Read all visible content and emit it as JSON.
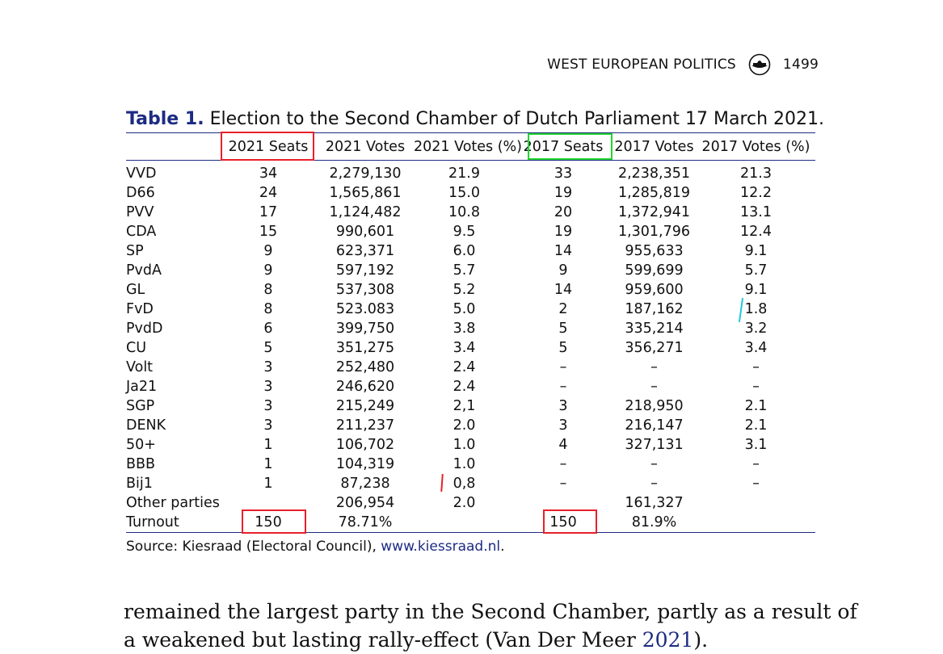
{
  "header": {
    "journal": "WEST EUROPEAN POLITICS",
    "page": "1499",
    "logo_icon": "journal-logo-icon"
  },
  "caption": {
    "label": "Table 1.",
    "text": "Election to the Second Chamber of Dutch Parliament 17 March 2021."
  },
  "table": {
    "columns": [
      "",
      "2021 Seats",
      "2021 Votes",
      "2021 Votes (%)",
      "2017 Seats",
      "2017 Votes",
      "2017 Votes (%)"
    ],
    "rows": [
      [
        "VVD",
        "34",
        "2,279,130",
        "21.9",
        "33",
        "2,238,351",
        "21.3"
      ],
      [
        "D66",
        "24",
        "1,565,861",
        "15.0",
        "19",
        "1,285,819",
        "12.2"
      ],
      [
        "PVV",
        "17",
        "1,124,482",
        "10.8",
        "20",
        "1,372,941",
        "13.1"
      ],
      [
        "CDA",
        "15",
        "990,601",
        "9.5",
        "19",
        "1,301,796",
        "12.4"
      ],
      [
        "SP",
        "9",
        "623,371",
        "6.0",
        "14",
        "955,633",
        "9.1"
      ],
      [
        "PvdA",
        "9",
        "597,192",
        "5.7",
        "9",
        "599,699",
        "5.7"
      ],
      [
        "GL",
        "8",
        "537,308",
        "5.2",
        "14",
        "959,600",
        "9.1"
      ],
      [
        "FvD",
        "8",
        "523.083",
        "5.0",
        "2",
        "187,162",
        "1.8"
      ],
      [
        "PvdD",
        "6",
        "399,750",
        "3.8",
        "5",
        "335,214",
        "3.2"
      ],
      [
        "CU",
        "5",
        "351,275",
        "3.4",
        "5",
        "356,271",
        "3.4"
      ],
      [
        "Volt",
        "3",
        "252,480",
        "2.4",
        "–",
        "–",
        "–"
      ],
      [
        "Ja21",
        "3",
        "246,620",
        "2.4",
        "–",
        "–",
        "–"
      ],
      [
        "SGP",
        "3",
        "215,249",
        "2,1",
        "3",
        "218,950",
        "2.1"
      ],
      [
        "DENK",
        "3",
        "211,237",
        "2.0",
        "3",
        "216,147",
        "2.1"
      ],
      [
        "50+",
        "1",
        "106,702",
        "1.0",
        "4",
        "327,131",
        "3.1"
      ],
      [
        "BBB",
        "1",
        "104,319",
        "1.0",
        "–",
        "–",
        "–"
      ],
      [
        "Bij1",
        "1",
        "87,238",
        "0,8",
        "–",
        "–",
        "–"
      ],
      [
        "Other parties",
        "",
        "206,954",
        "2.0",
        "",
        "161,327",
        ""
      ],
      [
        "Turnout",
        "150",
        "78.71%",
        "",
        "150",
        "81.9%",
        ""
      ]
    ]
  },
  "source": {
    "prefix": "Source: Kiesraad (Electoral Council), ",
    "link": "www.kiessraad.nl",
    "suffix": "."
  },
  "body": {
    "line1": "remained the largest party in the Second Chamber, partly as a result of",
    "line2_pre": "a weakened but lasting rally-effect (Van Der Meer ",
    "line2_ref": "2021",
    "line2_post": ")."
  },
  "annotation_colors": {
    "red": "#e8202a",
    "green": "#22d62f",
    "cyan": "#1fc9e0"
  }
}
